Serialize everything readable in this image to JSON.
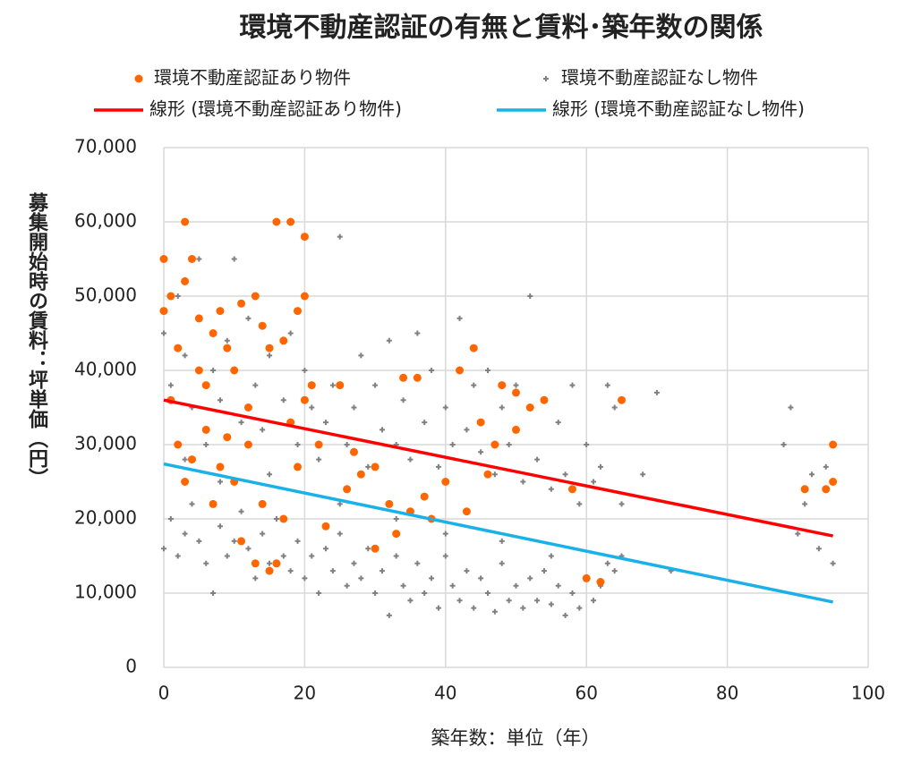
{
  "chart_data": {
    "type": "scatter",
    "title": "環境不動産認証の有無と賃料･築年数の関係",
    "xlabel": "築年数：単位（年）",
    "ylabel": "募集開始時の賃料：坪単価（円）",
    "xlim": [
      0,
      100
    ],
    "xticks": [
      0,
      20,
      40,
      60,
      80,
      100
    ],
    "ylim": [
      0,
      70000
    ],
    "yticks": [
      0,
      {
        "value": 10000,
        "label": "10,000"
      },
      {
        "value": 20000,
        "label": "20,000"
      },
      {
        "value": 30000,
        "label": "30,000"
      },
      {
        "value": 40000,
        "label": "40,000"
      },
      {
        "value": 50000,
        "label": "50,000"
      },
      {
        "value": 60000,
        "label": "60,000"
      },
      {
        "value": 70000,
        "label": "70,000"
      }
    ],
    "grid": true,
    "series": [
      {
        "name": "環境不動産認証なし物件",
        "type": "scatter",
        "marker": "plus",
        "color": "#808080",
        "x": [
          0,
          0,
          1,
          1,
          2,
          2,
          3,
          3,
          4,
          4,
          5,
          5,
          6,
          6,
          7,
          7,
          8,
          8,
          9,
          9,
          10,
          10,
          11,
          11,
          12,
          12,
          13,
          13,
          14,
          14,
          15,
          15,
          16,
          16,
          17,
          17,
          18,
          18,
          19,
          19,
          20,
          20,
          21,
          21,
          22,
          22,
          23,
          23,
          24,
          24,
          25,
          25,
          26,
          26,
          27,
          27,
          28,
          28,
          29,
          29,
          30,
          30,
          31,
          31,
          32,
          32,
          33,
          33,
          34,
          34,
          35,
          35,
          36,
          36,
          37,
          37,
          38,
          38,
          39,
          39,
          40,
          40,
          41,
          41,
          42,
          42,
          43,
          43,
          44,
          44,
          45,
          45,
          46,
          46,
          47,
          47,
          48,
          48,
          49,
          49,
          50,
          50,
          51,
          51,
          52,
          52,
          53,
          53,
          54,
          54,
          55,
          55,
          56,
          56,
          57,
          57,
          58,
          58,
          59,
          59,
          60,
          60,
          61,
          61,
          62,
          62,
          63,
          63,
          64,
          64,
          65,
          65,
          68,
          70,
          72,
          88,
          89,
          90,
          91,
          92,
          93,
          94,
          95,
          3,
          8,
          15,
          25,
          33,
          40,
          48,
          55
        ],
        "values": [
          45000,
          16000,
          38000,
          20000,
          50000,
          15000,
          42000,
          18000,
          35000,
          22000,
          55000,
          17000,
          30000,
          14000,
          40000,
          10000,
          36000,
          19000,
          44000,
          15000,
          55000,
          17000,
          33000,
          21000,
          47000,
          16000,
          38000,
          12000,
          32000,
          18000,
          42000,
          14000,
          60000,
          20000,
          36000,
          15000,
          45000,
          13000,
          30000,
          17000,
          40000,
          12000,
          35000,
          15000,
          28000,
          10000,
          33000,
          16000,
          38000,
          13000,
          58000,
          18000,
          30000,
          11000,
          35000,
          14000,
          42000,
          12000,
          27000,
          16000,
          38000,
          10000,
          32000,
          13000,
          44000,
          7000,
          30000,
          15000,
          36000,
          11000,
          28000,
          9000,
          45000,
          14000,
          33000,
          10000,
          40000,
          12000,
          27000,
          8000,
          35000,
          15000,
          30000,
          11000,
          47000,
          9000,
          32000,
          13000,
          38000,
          8000,
          29000,
          12000,
          40000,
          10000,
          26000,
          7500,
          35000,
          14000,
          30000,
          9000,
          38000,
          11000,
          25000,
          8000,
          50000,
          12000,
          28000,
          9000,
          36000,
          13000,
          24000,
          8500,
          33000,
          11000,
          26000,
          7000,
          38000,
          10000,
          22000,
          8000,
          30000,
          12000,
          25000,
          9000,
          27000,
          11000,
          38000,
          14000,
          35000,
          13000,
          22000,
          15000,
          26000,
          37000,
          13000,
          30000,
          35000,
          18000,
          22000,
          26000,
          16000,
          27000,
          14000,
          28000,
          25000,
          26000,
          22000,
          20000,
          18000,
          17000,
          15000
        ]
      },
      {
        "name": "環境不動産認証あり物件",
        "type": "scatter",
        "marker": "dot",
        "color": "#ff6600",
        "x": [
          0,
          0,
          1,
          2,
          3,
          3,
          4,
          5,
          6,
          7,
          8,
          9,
          10,
          11,
          12,
          13,
          14,
          15,
          16,
          17,
          18,
          19,
          20,
          20,
          21,
          2,
          4,
          6,
          8,
          10,
          12,
          14,
          15,
          16,
          18,
          20,
          22,
          25,
          26,
          28,
          30,
          32,
          34,
          36,
          38,
          40,
          42,
          44,
          45,
          47,
          48,
          50,
          52,
          54,
          58,
          60,
          62,
          65,
          91,
          94,
          95,
          95,
          1,
          3,
          5,
          7,
          9,
          11,
          13,
          17,
          19,
          23,
          27,
          30,
          33,
          35,
          37,
          43,
          46,
          50
        ],
        "values": [
          55000,
          48000,
          50000,
          43000,
          60000,
          52000,
          55000,
          47000,
          38000,
          45000,
          48000,
          43000,
          40000,
          49000,
          35000,
          50000,
          46000,
          43000,
          60000,
          44000,
          60000,
          48000,
          58000,
          50000,
          38000,
          30000,
          28000,
          32000,
          27000,
          25000,
          30000,
          22000,
          13000,
          14000,
          33000,
          36000,
          30000,
          38000,
          24000,
          26000,
          27000,
          22000,
          39000,
          39000,
          20000,
          25000,
          40000,
          43000,
          33000,
          30000,
          38000,
          37000,
          35000,
          36000,
          24000,
          12000,
          11500,
          36000,
          24000,
          24000,
          25000,
          30000,
          36000,
          25000,
          40000,
          22000,
          31000,
          17000,
          14000,
          20000,
          27000,
          19000,
          29000,
          16000,
          18000,
          21000,
          23000,
          21000,
          26000,
          32000
        ]
      },
      {
        "name": "線形 (環境不動産認証あり物件)",
        "type": "line",
        "color": "#ff0000",
        "x": [
          0,
          95
        ],
        "values": [
          36000,
          17700
        ]
      },
      {
        "name": "線形 (環境不動産認証なし物件)",
        "type": "line",
        "color": "#1ab0e8",
        "x": [
          0,
          95
        ],
        "values": [
          27400,
          8800
        ]
      }
    ],
    "legend_order": [
      1,
      0,
      2,
      3
    ]
  }
}
